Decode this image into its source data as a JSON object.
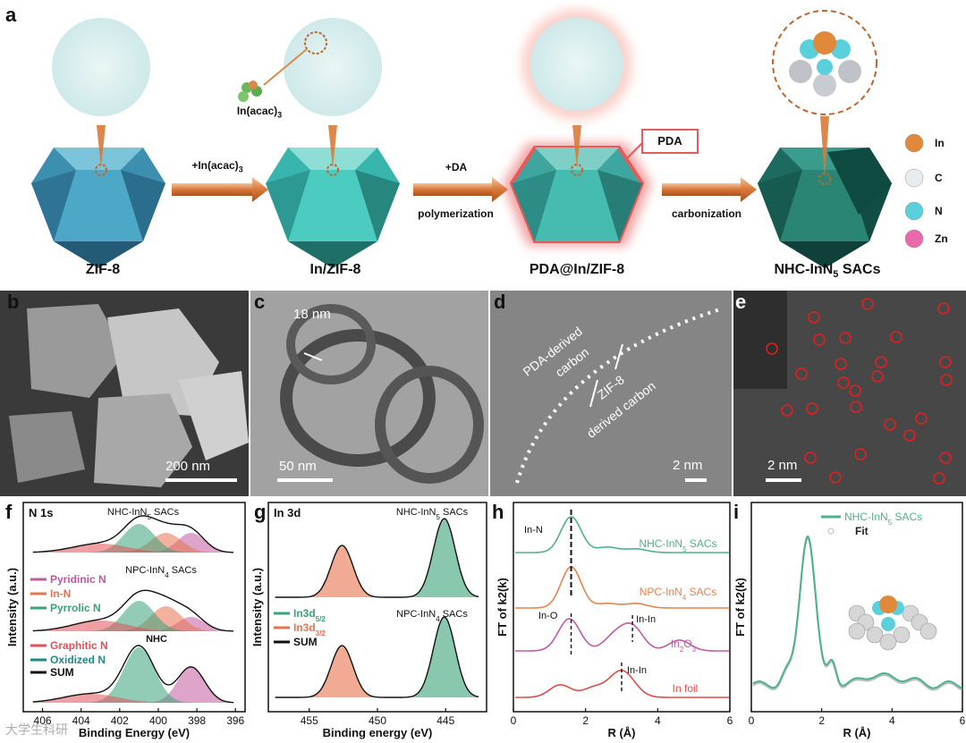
{
  "panel_labels": [
    "a",
    "b",
    "c",
    "d",
    "e",
    "f",
    "g",
    "h",
    "i"
  ],
  "panel_a": {
    "stages": [
      "ZIF-8",
      "In/ZIF-8",
      "PDA@In/ZIF-8",
      "NHC-InN",
      "SACs"
    ],
    "stage4_sub": "5",
    "precursor_label": "In(acac)",
    "precursor_sub": "3",
    "arrow1_label": "+In(acac)",
    "arrow1_sub": "3",
    "arrow2_top": "+DA",
    "arrow2_bottom": "polymerization",
    "arrow3_label": "carbonization",
    "pda_tag": "PDA",
    "legend": [
      "In",
      "C",
      "N",
      "Zn"
    ],
    "legend_colors": [
      "#e0893a",
      "#e8ecef",
      "#5ad0dc",
      "#e86aa8"
    ]
  },
  "panel_b": {
    "scalebar": "200 nm"
  },
  "panel_c": {
    "scalebar": "50 nm",
    "annotation": "18 nm"
  },
  "panel_d": {
    "scalebar": "2 nm",
    "label_top": "PDA-derived",
    "label_top2": "carbon",
    "label_bot": "ZIF-8",
    "label_bot2": "derived carbon"
  },
  "panel_e": {
    "scalebar": "2 nm"
  },
  "chart_data": [
    {
      "panel": "f",
      "type": "line",
      "corner_label": "N 1s",
      "ylabel": "Intensity (a.u.)",
      "xlabel": "Binding Energy (eV)",
      "xticks": [
        "406",
        "404",
        "402",
        "400",
        "398",
        "396"
      ],
      "xlim": [
        407,
        395.5
      ],
      "spectra": [
        {
          "name": "NHC-InN",
          "sub": "5",
          "suffix": " SACs"
        },
        {
          "name": "NPC-InN",
          "sub": "4",
          "suffix": " SACs"
        },
        {
          "name": "NHC",
          "sub": "",
          "suffix": ""
        }
      ],
      "legend": [
        "Pyridinic N",
        "In-N",
        "Pyrrolic  N",
        "Graphitic N",
        "Oxidized N",
        "SUM"
      ],
      "legend_colors": [
        "#c35a9e",
        "#e8734f",
        "#3aa37a",
        "#e0525a",
        "#1f8a80",
        "#111111"
      ]
    },
    {
      "panel": "g",
      "type": "line",
      "corner_label": "In 3d",
      "ylabel": "Intensity (a.u.)",
      "xlabel": "Binding energy (eV)",
      "xticks": [
        "455",
        "450",
        "445"
      ],
      "xlim": [
        458,
        442
      ],
      "spectra": [
        {
          "name": "NHC-InN",
          "sub": "5",
          "suffix": " SACs"
        },
        {
          "name": "NPC-InN",
          "sub": "4",
          "suffix": " SACs"
        }
      ],
      "peaks_ev": [
        452.6,
        445.1
      ],
      "legend": [
        "In3d",
        "In3d",
        "SUM"
      ],
      "legend_subs": [
        "5/2",
        "3/2",
        ""
      ],
      "legend_colors": [
        "#3aa37a",
        "#e8734f",
        "#111111"
      ]
    },
    {
      "panel": "h",
      "type": "line",
      "ylabel": "FT of k",
      "ylabel_tail": "(k)",
      "xlabel": "R (Å)",
      "xticks": [
        "0",
        "2",
        "4",
        "6"
      ],
      "xlim": [
        0,
        6
      ],
      "series": [
        {
          "name": "NHC-InN",
          "sub": "5",
          "suffix": " SACs",
          "color": "#4db38a",
          "peak_r": 1.6
        },
        {
          "name": "NPC-InN",
          "sub": "4",
          "suffix": " SACs",
          "color": "#e8824f",
          "peak_r": 1.6
        },
        {
          "name": "In",
          "sub": "2",
          "suffix": "O",
          "sub2": "3",
          "color": "#c35aa8",
          "peak_r": 1.6
        },
        {
          "name": "In foil",
          "sub": "",
          "suffix": "",
          "color": "#e54b4b",
          "peak_r": 3.0
        }
      ],
      "annotations": [
        "In-N",
        "In-O",
        "In-In",
        "In-In"
      ]
    },
    {
      "panel": "i",
      "type": "line",
      "ylabel": "FT of k",
      "ylabel_tail": "(k)",
      "xlabel": "R (Å)",
      "xticks": [
        "0",
        "2",
        "4",
        "6"
      ],
      "xlim": [
        0,
        6
      ],
      "series": [
        {
          "name": "NHC-InN",
          "sub": "5",
          "suffix": " SACs",
          "color": "#4db38a",
          "peak_r": 1.6
        },
        {
          "name": "Fit",
          "sub": "",
          "suffix": "",
          "color": "#bdbdbd",
          "peak_r": 1.6
        }
      ]
    }
  ],
  "watermark": "大学生科研"
}
